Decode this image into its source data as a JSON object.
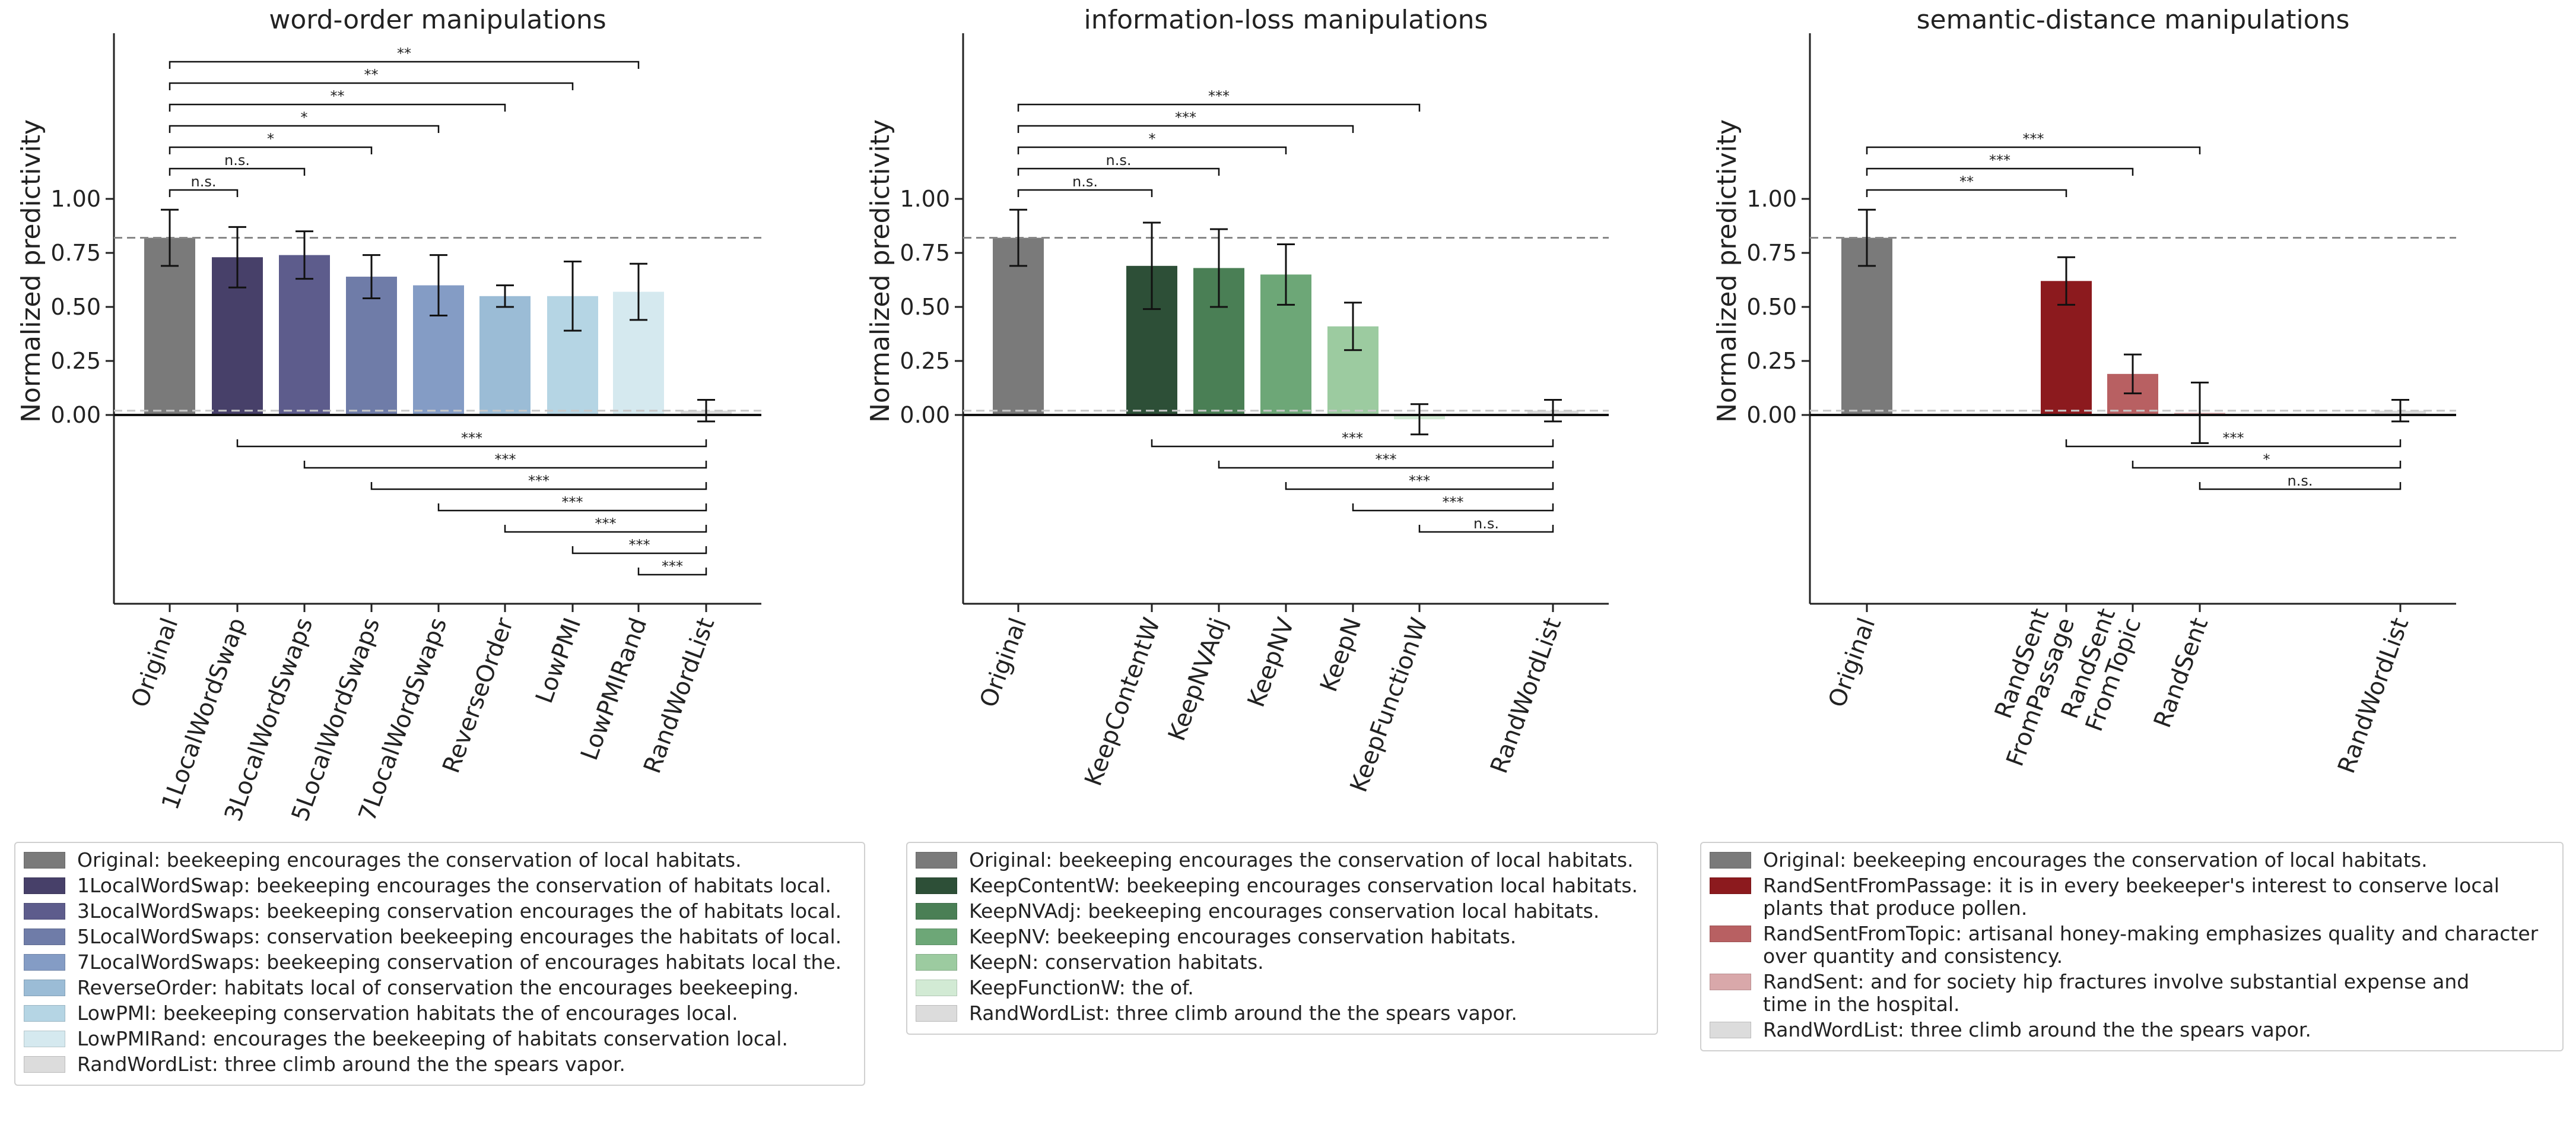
{
  "chart_data": [
    {
      "type": "bar",
      "title": "word-order manipulations",
      "ylabel": "Normalized predictivity",
      "ylim": [
        -0.87,
        1.76
      ],
      "yticks": [
        "0.00",
        "0.25",
        "0.50",
        "0.75",
        "1.00"
      ],
      "reference_line": 0.82,
      "chance_line": 0.02,
      "categories": [
        "Original",
        "1LocalWordSwap",
        "3LocalWordSwaps",
        "5LocalWordSwaps",
        "7LocalWordSwaps",
        "ReverseOrder",
        "LowPMI",
        "LowPMIRand",
        "RandWordList"
      ],
      "values": [
        0.82,
        0.73,
        0.74,
        0.64,
        0.6,
        0.55,
        0.55,
        0.57,
        0.02
      ],
      "errors": [
        0.13,
        0.14,
        0.11,
        0.1,
        0.14,
        0.05,
        0.16,
        0.13,
        0.05
      ],
      "colors": [
        "#7a7a7a",
        "#474069",
        "#5d5c8c",
        "#6f7ca8",
        "#849cc5",
        "#9bbcd6",
        "#b5d5e4",
        "#d5e9ef",
        "#dcdcdc"
      ],
      "top_comparisons": [
        {
          "from": "Original",
          "to": "1LocalWordSwap",
          "label": "n.s."
        },
        {
          "from": "Original",
          "to": "3LocalWordSwaps",
          "label": "n.s."
        },
        {
          "from": "Original",
          "to": "5LocalWordSwaps",
          "label": "*"
        },
        {
          "from": "Original",
          "to": "7LocalWordSwaps",
          "label": "*"
        },
        {
          "from": "Original",
          "to": "ReverseOrder",
          "label": "**"
        },
        {
          "from": "Original",
          "to": "LowPMI",
          "label": "**"
        },
        {
          "from": "Original",
          "to": "LowPMIRand",
          "label": "**"
        }
      ],
      "bottom_comparisons": [
        {
          "from": "1LocalWordSwap",
          "to": "RandWordList",
          "label": "***"
        },
        {
          "from": "3LocalWordSwaps",
          "to": "RandWordList",
          "label": "***"
        },
        {
          "from": "5LocalWordSwaps",
          "to": "RandWordList",
          "label": "***"
        },
        {
          "from": "7LocalWordSwaps",
          "to": "RandWordList",
          "label": "***"
        },
        {
          "from": "ReverseOrder",
          "to": "RandWordList",
          "label": "***"
        },
        {
          "from": "LowPMI",
          "to": "RandWordList",
          "label": "***"
        },
        {
          "from": "LowPMIRand",
          "to": "RandWordList",
          "label": "***"
        }
      ],
      "legend": [
        "Original: beekeeping encourages the conservation of local habitats.",
        "1LocalWordSwap: beekeeping encourages the conservation of habitats local.",
        "3LocalWordSwaps: beekeeping conservation encourages the of habitats local.",
        "5LocalWordSwaps: conservation beekeeping encourages the habitats of local.",
        "7LocalWordSwaps: beekeeping conservation of encourages habitats local the.",
        "ReverseOrder: habitats local of conservation the encourages beekeeping.",
        "LowPMI: beekeeping conservation habitats the of encourages local.",
        "LowPMIRand: encourages the beekeeping of habitats conservation local.",
        "RandWordList: three climb around the the spears vapor."
      ]
    },
    {
      "type": "bar",
      "title": "information-loss manipulations",
      "ylabel": "Normalized predictivity",
      "ylim": [
        -0.87,
        1.76
      ],
      "yticks": [
        "0.00",
        "0.25",
        "0.50",
        "0.75",
        "1.00"
      ],
      "reference_line": 0.82,
      "chance_line": 0.02,
      "categories": [
        "Original",
        "KeepContentW",
        "KeepNVAdj",
        "KeepNV",
        "KeepN",
        "KeepFunctionW",
        "RandWordList"
      ],
      "values": [
        0.82,
        0.69,
        0.68,
        0.65,
        0.41,
        -0.02,
        0.02
      ],
      "errors": [
        0.13,
        0.2,
        0.18,
        0.14,
        0.11,
        0.07,
        0.05
      ],
      "colors": [
        "#7a7a7a",
        "#2d4f37",
        "#4a7f55",
        "#6da777",
        "#9ccba0",
        "#d2ead4",
        "#dcdcdc"
      ],
      "top_comparisons": [
        {
          "from": "Original",
          "to": "KeepContentW",
          "label": "n.s."
        },
        {
          "from": "Original",
          "to": "KeepNVAdj",
          "label": "n.s."
        },
        {
          "from": "Original",
          "to": "KeepNV",
          "label": "*"
        },
        {
          "from": "Original",
          "to": "KeepN",
          "label": "***"
        },
        {
          "from": "Original",
          "to": "KeepFunctionW",
          "label": "***"
        }
      ],
      "bottom_comparisons": [
        {
          "from": "KeepContentW",
          "to": "RandWordList",
          "label": "***"
        },
        {
          "from": "KeepNVAdj",
          "to": "RandWordList",
          "label": "***"
        },
        {
          "from": "KeepNV",
          "to": "RandWordList",
          "label": "***"
        },
        {
          "from": "KeepN",
          "to": "RandWordList",
          "label": "***"
        },
        {
          "from": "KeepFunctionW",
          "to": "RandWordList",
          "label": "n.s."
        }
      ],
      "legend": [
        "Original: beekeeping encourages the conservation of local habitats.",
        "KeepContentW: beekeeping encourages conservation local habitats.",
        "KeepNVAdj: beekeeping encourages conservation local habitats.",
        "KeepNV: beekeeping encourages conservation habitats.",
        "KeepN: conservation habitats.",
        "KeepFunctionW: the of.",
        "RandWordList: three climb around the the spears vapor."
      ]
    },
    {
      "type": "bar",
      "title": "semantic-distance manipulations",
      "ylabel": "Normalized predictivity",
      "ylim": [
        -0.87,
        1.76
      ],
      "yticks": [
        "0.00",
        "0.25",
        "0.50",
        "0.75",
        "1.00"
      ],
      "reference_line": 0.82,
      "chance_line": 0.02,
      "categories": [
        "Original",
        "RandSentFromPassage",
        "RandSentFromTopic",
        "RandSent",
        "RandWordList"
      ],
      "tick_labels": [
        "Original",
        "RandSent\nFromPassage",
        "RandSent\nFromTopic",
        "RandSent",
        "RandWordList"
      ],
      "values": [
        0.82,
        0.62,
        0.19,
        0.01,
        0.02
      ],
      "errors": [
        0.13,
        0.11,
        0.09,
        0.14,
        0.05
      ],
      "colors": [
        "#7a7a7a",
        "#8c1a1e",
        "#b86062",
        "#d9a8aa",
        "#dcdcdc"
      ],
      "top_comparisons": [
        {
          "from": "Original",
          "to": "RandSentFromPassage",
          "label": "**"
        },
        {
          "from": "Original",
          "to": "RandSentFromTopic",
          "label": "***"
        },
        {
          "from": "Original",
          "to": "RandSent",
          "label": "***"
        }
      ],
      "bottom_comparisons": [
        {
          "from": "RandSentFromPassage",
          "to": "RandWordList",
          "label": "***"
        },
        {
          "from": "RandSentFromTopic",
          "to": "RandWordList",
          "label": "*"
        },
        {
          "from": "RandSent",
          "to": "RandWordList",
          "label": "n.s."
        }
      ],
      "legend": [
        "Original: beekeeping encourages the conservation of local habitats.",
        "RandSentFromPassage: it is in every beekeeper's interest to conserve local\nplants that produce pollen.",
        "RandSentFromTopic: artisanal honey-making emphasizes quality and character\nover quantity and consistency.",
        "RandSent: and for society hip fractures involve substantial expense and\ntime in the hospital.",
        "RandWordList: three climb around the the spears vapor."
      ]
    }
  ]
}
